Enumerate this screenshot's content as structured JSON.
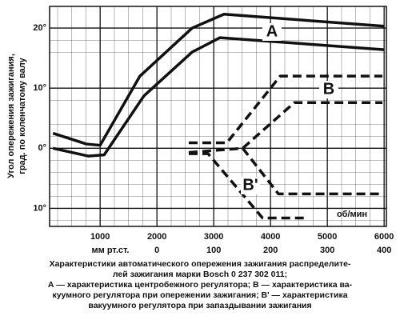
{
  "chart_data": {
    "type": "line",
    "ylabel": [
      "Угол опережения зажигания,",
      "град. по коленчатому валу"
    ],
    "xlim": [
      110,
      6040
    ],
    "ylim": [
      -13,
      23.6
    ],
    "xticks": [
      1000,
      2000,
      3000,
      4000,
      5000,
      6000
    ],
    "yticks": [
      {
        "value": 20,
        "label": "20°"
      },
      {
        "value": 10,
        "label": "10°"
      },
      {
        "value": 0,
        "label": "0°"
      },
      {
        "value": -10,
        "label": "10°"
      }
    ],
    "x2label": "мм рт.ст.",
    "x2lim": [
      -189,
      404
    ],
    "x2ticks": [
      0,
      100,
      200,
      300,
      400
    ],
    "x_unit": "об/мин",
    "grid": true,
    "series": [
      {
        "name": "A",
        "color": "#111",
        "style": "solid",
        "xaxis": "x",
        "lines": [
          {
            "x": [
              170,
              760,
              1000,
              1700,
              2620,
              3180,
              6000
            ],
            "values": [
              2.5,
              0.7,
              0.5,
              12,
              20,
              22.3,
              20.3
            ]
          },
          {
            "x": [
              170,
              790,
              1070,
              1770,
              2620,
              3110,
              6000
            ],
            "values": [
              0,
              -1.3,
              -1.1,
              8.7,
              16,
              18.4,
              16.4
            ]
          }
        ]
      },
      {
        "name": "B",
        "color": "#111",
        "style": "dashed",
        "xaxis": "x2",
        "lines": [
          {
            "x": [
              56,
              123,
              217,
              397
            ],
            "values": [
              0.9,
              0.9,
              12,
              12
            ]
          },
          {
            "x": [
              56,
              151,
              242,
              397
            ],
            "values": [
              -0.7,
              0,
              7.6,
              7.6
            ]
          }
        ]
      },
      {
        "name": "B'",
        "color": "#111",
        "style": "dashed",
        "xaxis": "x2",
        "lines": [
          {
            "x": [
              151,
              214,
              397
            ],
            "values": [
              0,
              -7.6,
              -7.6
            ]
          },
          {
            "x": [
              56,
              90,
              186,
              263
            ],
            "values": [
              -0.9,
              -0.9,
              -11.6,
              -11.6
            ]
          }
        ]
      }
    ],
    "caption": [
      "Характеристики автоматического опережения зажигания распределите-",
      "лей зажигания марки Bosch 0 237 302 011;",
      "А — характеристика центробежного регулятора; В — характеристика ва-",
      "куумного регулятора при опережении зажигания; В' — характеристика",
      "вакуумного регулятора при запаздывании зажигания"
    ]
  }
}
